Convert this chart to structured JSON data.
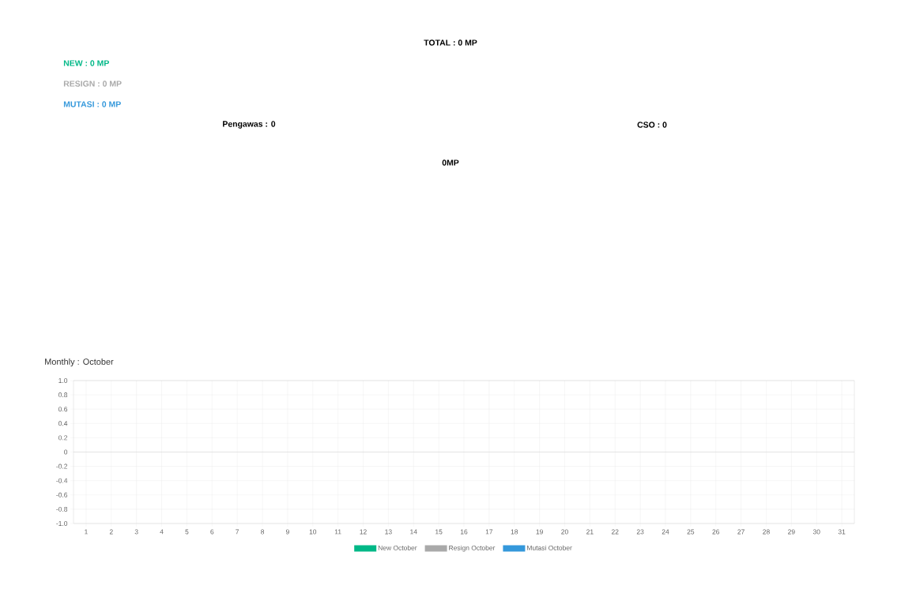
{
  "chart_data": {
    "type": "bar",
    "title": "Monthly : October",
    "annotations": [
      "TOTAL : 0 MP",
      "NEW : 0 MP",
      "RESIGN : 0 MP",
      "MUTASI : 0 MP",
      "Pengawas : 0",
      "CSO : 0",
      "0MP"
    ],
    "categories": [
      "1",
      "2",
      "3",
      "4",
      "5",
      "6",
      "7",
      "8",
      "9",
      "10",
      "11",
      "12",
      "13",
      "14",
      "15",
      "16",
      "17",
      "18",
      "19",
      "20",
      "21",
      "22",
      "23",
      "24",
      "25",
      "26",
      "27",
      "28",
      "29",
      "30",
      "31"
    ],
    "series": [
      {
        "name": "New October",
        "color": "#00b887",
        "values": [
          0,
          0,
          0,
          0,
          0,
          0,
          0,
          0,
          0,
          0,
          0,
          0,
          0,
          0,
          0,
          0,
          0,
          0,
          0,
          0,
          0,
          0,
          0,
          0,
          0,
          0,
          0,
          0,
          0,
          0,
          0
        ]
      },
      {
        "name": "Resign October",
        "color": "#a9a9a9",
        "values": [
          0,
          0,
          0,
          0,
          0,
          0,
          0,
          0,
          0,
          0,
          0,
          0,
          0,
          0,
          0,
          0,
          0,
          0,
          0,
          0,
          0,
          0,
          0,
          0,
          0,
          0,
          0,
          0,
          0,
          0,
          0
        ]
      },
      {
        "name": "Mutasi October",
        "color": "#3498db",
        "values": [
          0,
          0,
          0,
          0,
          0,
          0,
          0,
          0,
          0,
          0,
          0,
          0,
          0,
          0,
          0,
          0,
          0,
          0,
          0,
          0,
          0,
          0,
          0,
          0,
          0,
          0,
          0,
          0,
          0,
          0,
          0
        ]
      }
    ],
    "ylim": [
      -1,
      1
    ],
    "yticks": [
      {
        "value": -1,
        "label": "-1.0"
      },
      {
        "value": -0.8,
        "label": "-0.8"
      },
      {
        "value": -0.6,
        "label": "-0.6"
      },
      {
        "value": -0.4,
        "label": "-0.4"
      },
      {
        "value": -0.2,
        "label": "-0.2"
      },
      0,
      {
        "value": 0.2,
        "label": "0.2"
      },
      {
        "value": 0.4,
        "label": "0.4"
      },
      {
        "value": 0.6,
        "label": "0.6"
      },
      {
        "value": 0.8,
        "label": "0.8"
      },
      {
        "value": 1,
        "label": "1.0"
      }
    ],
    "grid": true,
    "legend": "bottom"
  }
}
